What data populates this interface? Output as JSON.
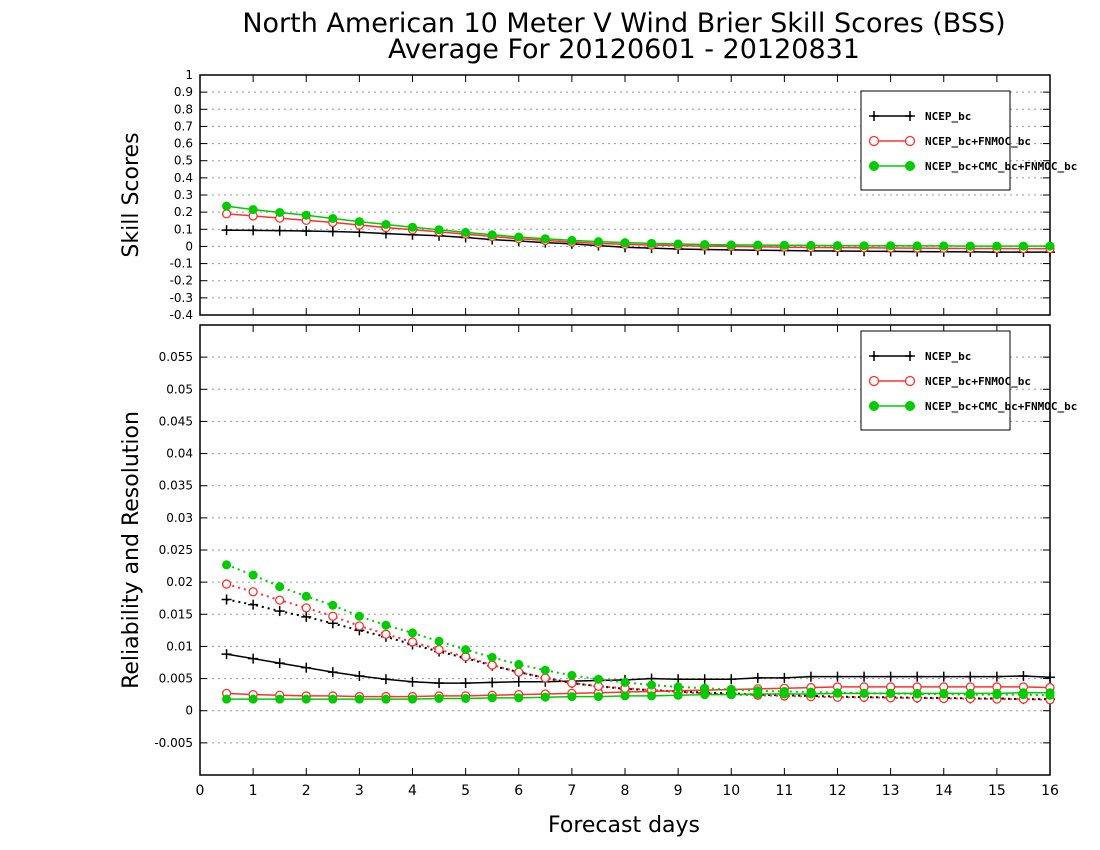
{
  "title_line1": "North American 10 Meter V Wind Brier Skill Scores (BSS)",
  "title_line2": "Average For 20120601 - 20120831",
  "xlabel": "Forecast days",
  "colors": {
    "black": "#000000",
    "red": "#ff3030",
    "green": "#00cc00",
    "grid": "#999999"
  },
  "chart_data": [
    {
      "type": "line",
      "ylabel": "Skill Scores",
      "ylim": [
        -0.4,
        1.0
      ],
      "xlim": [
        0,
        16
      ],
      "yticks": [
        "1",
        "0.9",
        "0.8",
        "0.7",
        "0.6",
        "0.5",
        "0.4",
        "0.3",
        "0.2",
        "0.1",
        "0",
        "-0.1",
        "-0.2",
        "-0.3",
        "-0.4"
      ],
      "xticks": [
        "0",
        "1",
        "2",
        "3",
        "4",
        "5",
        "6",
        "7",
        "8",
        "9",
        "10",
        "11",
        "12",
        "13",
        "14",
        "15",
        "16"
      ],
      "grid": "horizontal dotted",
      "legend_position": "top-right",
      "x": [
        0.5,
        1,
        1.5,
        2,
        2.5,
        3,
        3.5,
        4,
        4.5,
        5,
        5.5,
        6,
        6.5,
        7,
        7.5,
        8,
        8.5,
        9,
        9.5,
        10,
        10.5,
        11,
        11.5,
        12,
        12.5,
        13,
        13.5,
        14,
        14.5,
        15,
        15.5,
        16
      ],
      "series": [
        {
          "name": "NCEP_bc",
          "color": "black",
          "marker": "plus",
          "dash": "solid",
          "values": [
            0.095,
            0.094,
            0.092,
            0.09,
            0.087,
            0.083,
            0.075,
            0.068,
            0.062,
            0.052,
            0.04,
            0.032,
            0.022,
            0.015,
            0.005,
            -0.005,
            -0.01,
            -0.015,
            -0.018,
            -0.02,
            -0.022,
            -0.024,
            -0.026,
            -0.027,
            -0.028,
            -0.029,
            -0.03,
            -0.031,
            -0.032,
            -0.033,
            -0.033,
            -0.033
          ]
        },
        {
          "name": "NCEP_bc+FNMOC_bc",
          "color": "red",
          "marker": "open-circle",
          "dash": "solid",
          "values": [
            0.19,
            0.178,
            0.165,
            0.152,
            0.14,
            0.125,
            0.11,
            0.098,
            0.085,
            0.072,
            0.058,
            0.045,
            0.035,
            0.025,
            0.018,
            0.012,
            0.008,
            0.005,
            0.002,
            0.0,
            -0.002,
            -0.004,
            -0.006,
            -0.007,
            -0.008,
            -0.009,
            -0.01,
            -0.011,
            -0.012,
            -0.012,
            -0.013,
            -0.013
          ]
        },
        {
          "name": "NCEP_bc+CMC_bc+FNMOC_bc",
          "color": "green",
          "marker": "filled-circle",
          "dash": "solid",
          "values": [
            0.235,
            0.215,
            0.198,
            0.182,
            0.163,
            0.145,
            0.128,
            0.112,
            0.097,
            0.082,
            0.068,
            0.055,
            0.045,
            0.035,
            0.028,
            0.022,
            0.018,
            0.014,
            0.011,
            0.009,
            0.008,
            0.007,
            0.006,
            0.005,
            0.004,
            0.004,
            0.003,
            0.003,
            0.002,
            0.002,
            0.002,
            0.002
          ]
        }
      ]
    },
    {
      "type": "line",
      "ylabel": "Reliability and Resolution",
      "ylim": [
        -0.01,
        0.06
      ],
      "xlim": [
        0,
        16
      ],
      "yticks": [
        "0.055",
        "0.05",
        "0.045",
        "0.04",
        "0.035",
        "0.03",
        "0.025",
        "0.02",
        "0.015",
        "0.01",
        "0.005",
        "0",
        "-0.005"
      ],
      "xticks": [
        "0",
        "1",
        "2",
        "3",
        "4",
        "5",
        "6",
        "7",
        "8",
        "9",
        "10",
        "11",
        "12",
        "13",
        "14",
        "15",
        "16"
      ],
      "grid": "horizontal dotted",
      "legend_position": "top-right",
      "x": [
        0.5,
        1,
        1.5,
        2,
        2.5,
        3,
        3.5,
        4,
        4.5,
        5,
        5.5,
        6,
        6.5,
        7,
        7.5,
        8,
        8.5,
        9,
        9.5,
        10,
        10.5,
        11,
        11.5,
        12,
        12.5,
        13,
        13.5,
        14,
        14.5,
        15,
        15.5,
        16
      ],
      "series": [
        {
          "name": "NCEP_bc",
          "color": "black",
          "marker": "plus",
          "dash": "solid",
          "values": [
            0.0088,
            0.0081,
            0.0074,
            0.0067,
            0.006,
            0.0054,
            0.0049,
            0.0045,
            0.0043,
            0.0043,
            0.0044,
            0.0045,
            0.0045,
            0.0046,
            0.0047,
            0.0048,
            0.005,
            0.0049,
            0.0049,
            0.0049,
            0.0051,
            0.0051,
            0.0053,
            0.0053,
            0.0053,
            0.0053,
            0.0053,
            0.0053,
            0.0053,
            0.0053,
            0.0054,
            0.0052
          ]
        },
        {
          "name": "NCEP_bc",
          "color": "black",
          "marker": "plus",
          "dash": "dotted",
          "values": [
            0.0173,
            0.0165,
            0.0155,
            0.0146,
            0.0136,
            0.0125,
            0.0115,
            0.0103,
            0.0092,
            0.0082,
            0.007,
            0.006,
            0.0051,
            0.0043,
            0.0038,
            0.0034,
            0.0032,
            0.003,
            0.0028,
            0.0027,
            0.0025,
            0.0024,
            0.0023,
            0.0022,
            0.0021,
            0.0021,
            0.002,
            0.002,
            0.0019,
            0.0019,
            0.0018,
            0.0018
          ]
        },
        {
          "name": "NCEP_bc+FNMOC_bc",
          "color": "red",
          "marker": "open-circle",
          "dash": "solid",
          "values": [
            0.0027,
            0.0025,
            0.0024,
            0.0023,
            0.0023,
            0.0022,
            0.0022,
            0.0022,
            0.0023,
            0.0023,
            0.0024,
            0.0025,
            0.0026,
            0.0027,
            0.0028,
            0.0029,
            0.003,
            0.0031,
            0.0032,
            0.0033,
            0.0034,
            0.0035,
            0.0036,
            0.0037,
            0.0037,
            0.0037,
            0.0037,
            0.0037,
            0.0037,
            0.0037,
            0.0037,
            0.0036
          ]
        },
        {
          "name": "NCEP_bc+FNMOC_bc",
          "color": "red",
          "marker": "open-circle",
          "dash": "dotted",
          "values": [
            0.0197,
            0.0185,
            0.0172,
            0.016,
            0.0147,
            0.0132,
            0.0119,
            0.0107,
            0.0095,
            0.0084,
            0.0071,
            0.006,
            0.0051,
            0.0043,
            0.0038,
            0.0035,
            0.0032,
            0.0029,
            0.0027,
            0.0025,
            0.0024,
            0.0023,
            0.0022,
            0.0021,
            0.0021,
            0.002,
            0.002,
            0.0019,
            0.0019,
            0.0018,
            0.0018,
            0.0017
          ]
        },
        {
          "name": "NCEP_bc+CMC_bc+FNMOC_bc",
          "color": "green",
          "marker": "filled-circle",
          "dash": "solid",
          "values": [
            0.0018,
            0.0018,
            0.0018,
            0.0018,
            0.0018,
            0.0018,
            0.0018,
            0.0018,
            0.0019,
            0.0019,
            0.002,
            0.002,
            0.0021,
            0.0022,
            0.0022,
            0.0023,
            0.0023,
            0.0024,
            0.0025,
            0.0025,
            0.0026,
            0.0026,
            0.0026,
            0.0027,
            0.0027,
            0.0027,
            0.0027,
            0.0027,
            0.0027,
            0.0027,
            0.0028,
            0.0028
          ]
        },
        {
          "name": "NCEP_bc+CMC_bc+FNMOC_bc",
          "color": "green",
          "marker": "filled-circle",
          "dash": "dotted",
          "values": [
            0.0227,
            0.0211,
            0.0193,
            0.0178,
            0.0164,
            0.0147,
            0.0133,
            0.0121,
            0.0108,
            0.0095,
            0.0083,
            0.0072,
            0.0063,
            0.0055,
            0.0049,
            0.0044,
            0.004,
            0.0037,
            0.0035,
            0.0033,
            0.0031,
            0.003,
            0.0029,
            0.0028,
            0.0027,
            0.0027,
            0.0026,
            0.0026,
            0.0025,
            0.0025,
            0.0025,
            0.0024
          ]
        }
      ]
    }
  ]
}
